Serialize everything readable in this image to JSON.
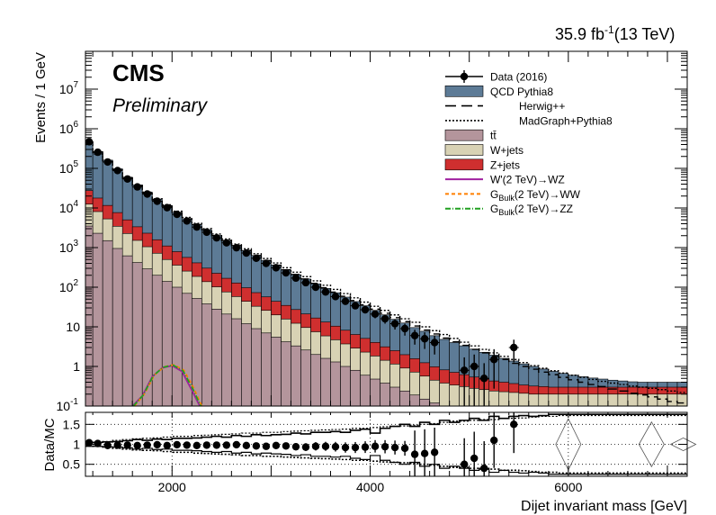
{
  "chart_data": {
    "type": "bar",
    "title": "CMS",
    "subtitle": "Preliminary",
    "lumi_label": "35.9 fb",
    "lumi_superscript": "-1",
    "energy_label": "(13 TeV)",
    "xlabel": "Dijet invariant mass [GeV]",
    "ylabel": "Events / 1 GeV",
    "ratio_ylabel": "Data/MC",
    "xlim": [
      1126,
      7200
    ],
    "ylim": [
      0.1,
      90000000
    ],
    "y_scale": "log",
    "ratio_ylim": [
      0.2,
      1.8
    ],
    "x_ticks": [
      2000,
      4000,
      6000
    ],
    "y_tick_labels": [
      {
        "value": 0.1,
        "label": "10",
        "sup": "-1"
      },
      {
        "value": 1,
        "label": "1",
        "sup": ""
      },
      {
        "value": 10,
        "label": "10",
        "sup": ""
      },
      {
        "value": 100,
        "label": "10",
        "sup": "2"
      },
      {
        "value": 1000,
        "label": "10",
        "sup": "3"
      },
      {
        "value": 10000,
        "label": "10",
        "sup": "4"
      },
      {
        "value": 100000,
        "label": "10",
        "sup": "5"
      },
      {
        "value": 1000000,
        "label": "10",
        "sup": "6"
      },
      {
        "value": 10000000,
        "label": "10",
        "sup": "7"
      }
    ],
    "ratio_y_ticks": [
      0.5,
      1,
      1.5
    ],
    "legend_placement": "top-right",
    "grid": "dotted on ratio panel",
    "colors": {
      "qcd": "#5d7b96",
      "ttbar": "#b4959c",
      "wjets": "#d8d2b4",
      "zjets": "#cf2f2f",
      "signal_wz": "#a020a0",
      "signal_ww": "#ff7f00",
      "signal_zz": "#20a020"
    },
    "legend": [
      {
        "label": "Data (2016)",
        "key": "data",
        "style": "marker"
      },
      {
        "label": "QCD Pythia8",
        "key": "qcd",
        "style": "fill"
      },
      {
        "label": "Herwig++",
        "key": "herwig",
        "style": "dash"
      },
      {
        "label": "MadGraph+Pythia8",
        "key": "madgraph",
        "style": "dot"
      },
      {
        "label": "tt̄",
        "key": "ttbar",
        "style": "fill"
      },
      {
        "label": "W+jets",
        "key": "wjets",
        "style": "fill"
      },
      {
        "label": "Z+jets",
        "key": "zjets",
        "style": "fill"
      },
      {
        "label": "W'(2 TeV)→WZ",
        "key": "signal_wz",
        "style": "line"
      },
      {
        "label": "G",
        "sub": "Bulk",
        "tail": "(2 TeV)→WW",
        "key": "signal_ww",
        "style": "dash-line"
      },
      {
        "label": "G",
        "sub": "Bulk",
        "tail": "(2 TeV)→ZZ",
        "key": "signal_zz",
        "style": "dashdot-line"
      }
    ],
    "bin_edges": [
      1126,
      1200,
      1300,
      1400,
      1500,
      1600,
      1700,
      1800,
      1900,
      2000,
      2100,
      2200,
      2300,
      2400,
      2500,
      2600,
      2700,
      2800,
      2900,
      3000,
      3100,
      3200,
      3300,
      3400,
      3500,
      3600,
      3700,
      3800,
      3900,
      4000,
      4100,
      4200,
      4300,
      4400,
      4500,
      4600,
      4700,
      4800,
      4900,
      5000,
      5100,
      5200,
      5300,
      5400,
      5500,
      5600,
      5700,
      5800,
      5900,
      6000,
      6100,
      6200,
      6300,
      6400,
      6500,
      6600,
      6700,
      6800,
      6900,
      7000,
      7100,
      7200
    ],
    "series": [
      {
        "name": "tt̄",
        "key": "ttbar",
        "values": [
          3500,
          2300,
          1500,
          950,
          620,
          420,
          290,
          200,
          140,
          100,
          70,
          52,
          38,
          28,
          21,
          16,
          12,
          9,
          7,
          5.5,
          4.2,
          3.3,
          2.6,
          2.0,
          1.6,
          1.3,
          1.0,
          0.8,
          0.6,
          0.48,
          0.38,
          0.3,
          0.24,
          0.19,
          0.15,
          0.12,
          0.1,
          0.1,
          0.1,
          0.1,
          0.1,
          0.1,
          0.1,
          0.1,
          0.1,
          0.1,
          0.1,
          0.1,
          0.1,
          0.1,
          0.1,
          0.1,
          0.1,
          0.1,
          0.1,
          0.1,
          0.1,
          0.1,
          0.1,
          0.1,
          0.1
        ]
      },
      {
        "name": "W+jets",
        "key": "wjets",
        "values": [
          9000,
          5800,
          3800,
          2500,
          1650,
          1100,
          760,
          520,
          360,
          260,
          185,
          135,
          100,
          74,
          55,
          42,
          32,
          24,
          19,
          14.5,
          11.5,
          9,
          7,
          5.5,
          4.3,
          3.4,
          2.7,
          2.1,
          1.7,
          1.35,
          1.05,
          0.85,
          0.67,
          0.53,
          0.42,
          0.33,
          0.28,
          0.24,
          0.21,
          0.18,
          0.16,
          0.14,
          0.13,
          0.12,
          0.11,
          0.1,
          0.1,
          0.1,
          0.1,
          0.1,
          0.1,
          0.1,
          0.1,
          0.1,
          0.1,
          0.1,
          0.1,
          0.1,
          0.1,
          0.1,
          0.1
        ]
      },
      {
        "name": "Z+jets",
        "key": "zjets",
        "values": [
          15000,
          9700,
          6300,
          4200,
          2750,
          1830,
          1260,
          860,
          600,
          430,
          310,
          225,
          165,
          123,
          92,
          70,
          53,
          40,
          31,
          24,
          19,
          15,
          11.6,
          9.2,
          7.3,
          5.7,
          4.5,
          3.5,
          2.8,
          2.2,
          1.7,
          1.35,
          1.07,
          0.85,
          0.67,
          0.53,
          0.44,
          0.37,
          0.31,
          0.26,
          0.22,
          0.19,
          0.17,
          0.15,
          0.13,
          0.12,
          0.11,
          0.1,
          0.1,
          0.1,
          0.1,
          0.1,
          0.1,
          0.1,
          0.1,
          0.1,
          0.1,
          0.1,
          0.1,
          0.1,
          0.1
        ]
      },
      {
        "name": "QCD Pythia8",
        "key": "qcd",
        "values": [
          450000,
          250000,
          150000,
          90000,
          55000,
          35000,
          23000,
          15000,
          10500,
          7000,
          4800,
          3400,
          2500,
          1800,
          1350,
          1000,
          750,
          560,
          420,
          320,
          240,
          180,
          140,
          105,
          80,
          62,
          48,
          37,
          29,
          22,
          17,
          13,
          10.5,
          8,
          6.5,
          5,
          4,
          3.3,
          2.7,
          2.2,
          1.8,
          1.5,
          1.2,
          1,
          0.82,
          0.68,
          0.55,
          0.45,
          0.37,
          0.3,
          0.25,
          0.21,
          0.18,
          0.15,
          0.13,
          0.11,
          0.1,
          0.1,
          0.1,
          0.1,
          0.1
        ]
      },
      {
        "name": "Data (2016)",
        "key": "data",
        "values": [
          470000,
          255000,
          145000,
          88000,
          54000,
          34000,
          22500,
          14800,
          10200,
          6900,
          4700,
          3300,
          2450,
          1760,
          1320,
          990,
          730,
          540,
          400,
          310,
          230,
          170,
          130,
          100,
          76,
          58,
          44,
          34,
          27,
          21,
          16,
          12,
          9,
          6,
          5,
          4,
          0,
          0,
          0.8,
          1,
          0.5,
          1.5,
          0,
          3,
          0,
          0,
          0,
          0,
          0,
          0,
          0,
          0,
          0,
          0,
          0,
          0,
          0,
          0,
          0,
          0,
          0
        ]
      },
      {
        "name": "MadGraph+Pythia8",
        "key": "madgraph",
        "values": [
          400000,
          230000,
          145000,
          90000,
          57000,
          37000,
          25000,
          17000,
          12000,
          8300,
          5800,
          4100,
          3000,
          2200,
          1650,
          1230,
          930,
          700,
          530,
          410,
          310,
          240,
          185,
          145,
          112,
          88,
          69,
          54,
          42,
          33,
          26,
          20,
          16,
          13,
          10,
          8,
          6.4,
          5.1,
          4.1,
          3.3,
          2.7,
          2.2,
          1.8,
          1.5,
          1.25,
          1.05,
          0.9,
          0.78,
          0.68,
          0.6,
          0.53,
          0.47,
          0.42,
          0.38,
          0.35,
          0.32,
          0.3,
          0.28,
          0.26,
          0.24,
          0.22
        ]
      },
      {
        "name": "Herwig++",
        "key": "herwig",
        "values": [
          460000,
          255000,
          150000,
          92000,
          56000,
          36000,
          24000,
          16000,
          11000,
          7600,
          5300,
          3800,
          2800,
          2000,
          1500,
          1120,
          840,
          630,
          470,
          360,
          275,
          210,
          162,
          125,
          97,
          75,
          59,
          46,
          36,
          28,
          22,
          17,
          13.5,
          10.5,
          8.3,
          6.6,
          5.2,
          4.2,
          3.4,
          2.7,
          2.2,
          1.8,
          1.5,
          1.2,
          1,
          0.85,
          0.72,
          0.62,
          0.53,
          0.46,
          0.4,
          0.35,
          0.31,
          0.27,
          0.24,
          0.21,
          0.19,
          0.17,
          0.15,
          0.13,
          0.12
        ]
      },
      {
        "name": "W'(2 TeV)→WZ",
        "key": "signal_wz",
        "x": [
          1600,
          1700,
          1800,
          1900,
          2000,
          2100,
          2200,
          2280
        ],
        "values": [
          0.1,
          0.18,
          0.55,
          0.92,
          1.05,
          0.75,
          0.25,
          0.1
        ]
      },
      {
        "name": "G(2 TeV)→WW",
        "key": "signal_ww",
        "x": [
          1620,
          1720,
          1820,
          1920,
          2020,
          2120,
          2220,
          2300
        ],
        "values": [
          0.1,
          0.2,
          0.6,
          0.98,
          1.1,
          0.8,
          0.28,
          0.1
        ]
      },
      {
        "name": "G(2 TeV)→ZZ",
        "key": "signal_zz",
        "x": [
          1610,
          1710,
          1810,
          1910,
          2010,
          2110,
          2210,
          2290
        ],
        "values": [
          0.1,
          0.19,
          0.58,
          0.95,
          1.08,
          0.78,
          0.27,
          0.1
        ]
      }
    ],
    "ratio": {
      "data_mc": [
        1.04,
        1.02,
        0.97,
        0.98,
        0.98,
        0.97,
        0.98,
        0.99,
        0.97,
        0.99,
        0.98,
        0.97,
        0.98,
        0.98,
        0.98,
        0.99,
        0.97,
        0.96,
        0.95,
        0.97,
        0.96,
        0.94,
        0.93,
        0.95,
        0.95,
        0.94,
        0.92,
        0.92,
        0.93,
        0.95,
        0.94,
        0.92,
        0.9,
        0.75,
        0.77,
        0.8,
        0,
        0,
        0.5,
        0.65,
        0.4,
        1.1,
        0,
        1.5,
        0,
        0,
        0,
        0,
        0,
        0,
        0,
        0,
        0,
        0,
        0,
        0,
        0,
        0,
        0,
        0,
        0
      ],
      "herwig_band_hi": [
        1.05,
        1.05,
        1.06,
        1.07,
        1.09,
        1.12,
        1.1,
        1.13,
        1.12,
        1.15,
        1.15,
        1.16,
        1.18,
        1.2,
        1.18,
        1.22,
        1.2,
        1.24,
        1.22,
        1.24,
        1.25,
        1.28,
        1.26,
        1.3,
        1.3,
        1.32,
        1.3,
        1.35,
        1.38,
        1.28,
        1.4,
        1.45,
        1.5,
        1.45,
        1.55,
        1.5,
        1.6,
        1.55,
        1.6,
        1.65,
        1.6,
        1.7,
        1.65,
        1.7,
        1.72,
        1.7,
        1.72,
        1.75,
        1.75,
        1.75,
        1.75,
        1.75,
        1.75,
        1.75,
        1.75,
        1.75,
        1.75,
        1.75,
        1.75,
        1.75,
        1.75
      ],
      "madgraph_band_lo": [
        0.96,
        0.95,
        0.93,
        0.9,
        0.88,
        0.86,
        0.85,
        0.84,
        0.82,
        0.8,
        0.8,
        0.78,
        0.77,
        0.76,
        0.75,
        0.74,
        0.72,
        0.72,
        0.7,
        0.7,
        0.68,
        0.67,
        0.66,
        0.65,
        0.64,
        0.63,
        0.62,
        0.6,
        0.6,
        0.58,
        0.56,
        0.55,
        0.54,
        0.52,
        0.5,
        0.48,
        0.45,
        0.42,
        0.42,
        0.4,
        0.38,
        0.38,
        0.35,
        0.35,
        0.34,
        0.32,
        0.3,
        0.3,
        0.28,
        0.28,
        0.28,
        0.28,
        0.28,
        0.28,
        0.28,
        0.28,
        0.28,
        0.28,
        0.28,
        0.28,
        0.28
      ]
    }
  }
}
